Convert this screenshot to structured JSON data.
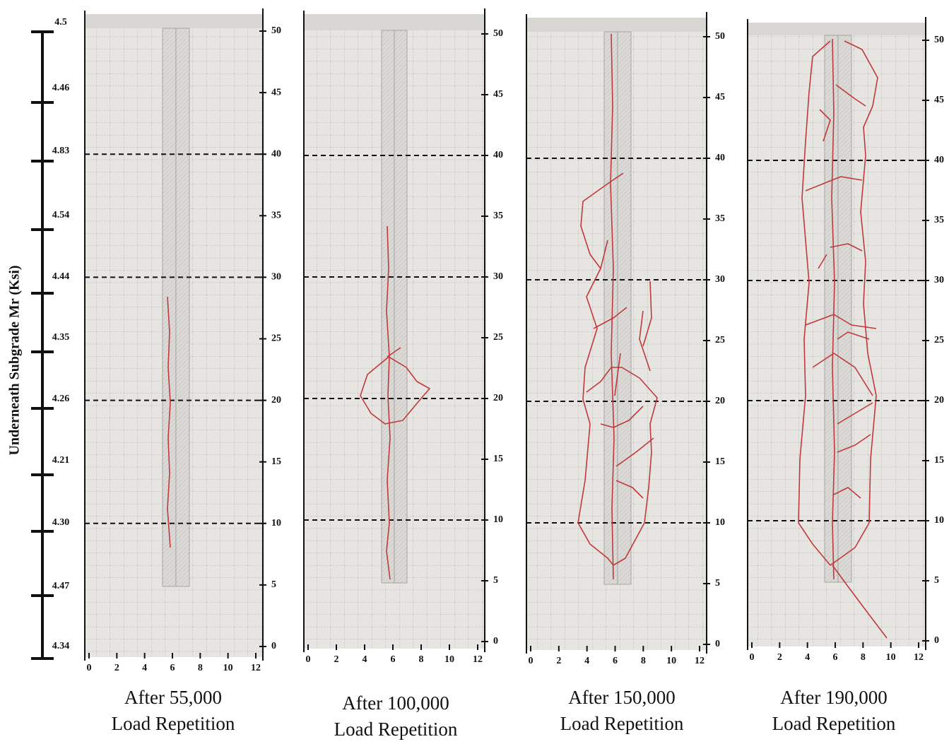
{
  "left_scale": {
    "axis_label": "Underneath Subgrade Mr (Ksi)",
    "values": [
      "4.5",
      "4.46",
      "4.83",
      "4.54",
      "4.44",
      "4.35",
      "4.26",
      "4.21",
      "4.30",
      "4.47",
      "4.34"
    ]
  },
  "panels": [
    {
      "caption_line1": "After 55,000",
      "caption_line2": "Load Repetition",
      "x_ticks": [
        0,
        2,
        4,
        6,
        8,
        10,
        12
      ],
      "y_ticks": [
        50,
        45,
        40,
        35,
        30,
        25,
        20,
        15,
        10,
        5,
        0
      ]
    },
    {
      "caption_line1": "After 100,000",
      "caption_line2": "Load Repetition",
      "x_ticks": [
        0,
        2,
        4,
        6,
        8,
        10,
        12
      ],
      "y_ticks": [
        50,
        45,
        40,
        35,
        30,
        25,
        20,
        15,
        10,
        5,
        0
      ]
    },
    {
      "caption_line1": "After 150,000",
      "caption_line2": "Load Repetition",
      "x_ticks": [
        0,
        2,
        4,
        6,
        8,
        10,
        12
      ],
      "y_ticks": [
        50,
        45,
        40,
        35,
        30,
        25,
        20,
        15,
        10,
        5,
        0
      ]
    },
    {
      "caption_line1": "After 190,000",
      "caption_line2": "Load Repetition",
      "x_ticks": [
        0,
        2,
        4,
        6,
        8,
        10,
        12
      ],
      "y_ticks": [
        50,
        45,
        40,
        35,
        30,
        25,
        20,
        15,
        10,
        5,
        0
      ]
    }
  ]
}
